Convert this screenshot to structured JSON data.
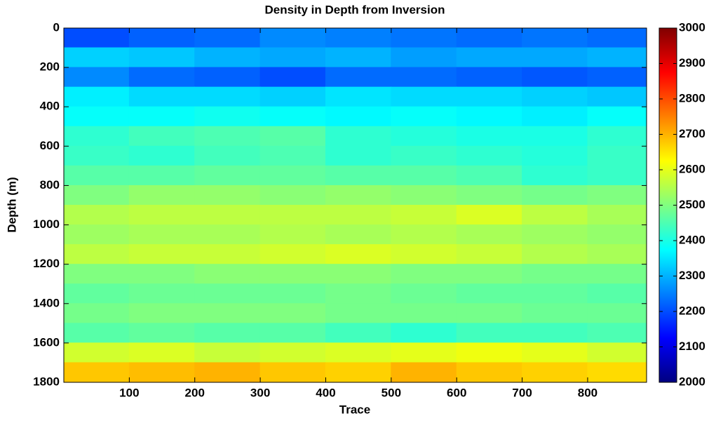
{
  "chart_data": {
    "type": "heatmap",
    "title": "Density in Depth from Inversion",
    "xlabel": "Trace",
    "ylabel": "Depth (m)",
    "x": [
      50,
      150,
      250,
      350,
      450,
      550,
      650,
      750,
      850
    ],
    "y": [
      50,
      150,
      250,
      350,
      450,
      550,
      650,
      750,
      850,
      950,
      1050,
      1150,
      1250,
      1350,
      1450,
      1550,
      1650,
      1750
    ],
    "z": [
      [
        2200,
        2220,
        2230,
        2260,
        2250,
        2240,
        2230,
        2240,
        2230
      ],
      [
        2330,
        2320,
        2300,
        2290,
        2300,
        2280,
        2290,
        2290,
        2300
      ],
      [
        2260,
        2230,
        2220,
        2200,
        2230,
        2230,
        2220,
        2210,
        2220
      ],
      [
        2360,
        2340,
        2340,
        2330,
        2350,
        2340,
        2340,
        2330,
        2320
      ],
      [
        2380,
        2380,
        2390,
        2380,
        2370,
        2380,
        2370,
        2360,
        2380
      ],
      [
        2420,
        2440,
        2450,
        2460,
        2420,
        2410,
        2400,
        2400,
        2420
      ],
      [
        2430,
        2420,
        2440,
        2450,
        2420,
        2430,
        2420,
        2410,
        2430
      ],
      [
        2460,
        2460,
        2470,
        2470,
        2460,
        2460,
        2450,
        2420,
        2430
      ],
      [
        2500,
        2520,
        2520,
        2510,
        2520,
        2510,
        2500,
        2490,
        2500
      ],
      [
        2550,
        2560,
        2560,
        2560,
        2560,
        2570,
        2590,
        2560,
        2540
      ],
      [
        2530,
        2540,
        2540,
        2550,
        2540,
        2550,
        2540,
        2530,
        2520
      ],
      [
        2560,
        2570,
        2570,
        2580,
        2590,
        2580,
        2570,
        2550,
        2540
      ],
      [
        2500,
        2500,
        2510,
        2510,
        2510,
        2500,
        2500,
        2490,
        2490
      ],
      [
        2470,
        2480,
        2480,
        2480,
        2490,
        2480,
        2470,
        2470,
        2460
      ],
      [
        2490,
        2500,
        2500,
        2500,
        2490,
        2490,
        2490,
        2480,
        2480
      ],
      [
        2460,
        2470,
        2460,
        2460,
        2440,
        2420,
        2440,
        2440,
        2450
      ],
      [
        2580,
        2590,
        2570,
        2580,
        2590,
        2600,
        2610,
        2600,
        2580
      ],
      [
        2680,
        2690,
        2700,
        2680,
        2670,
        2700,
        2680,
        2670,
        2660
      ]
    ],
    "colormap": "jet",
    "xlim": [
      0,
      890
    ],
    "ylim": [
      1800,
      0
    ],
    "xticks": [
      100,
      200,
      300,
      400,
      500,
      600,
      700,
      800
    ],
    "yticks": [
      0,
      200,
      400,
      600,
      800,
      1000,
      1200,
      1400,
      1600,
      1800
    ],
    "clim": [
      2000,
      3000
    ],
    "cticks": [
      2000,
      2100,
      2200,
      2300,
      2400,
      2500,
      2600,
      2700,
      2800,
      2900,
      3000
    ]
  }
}
